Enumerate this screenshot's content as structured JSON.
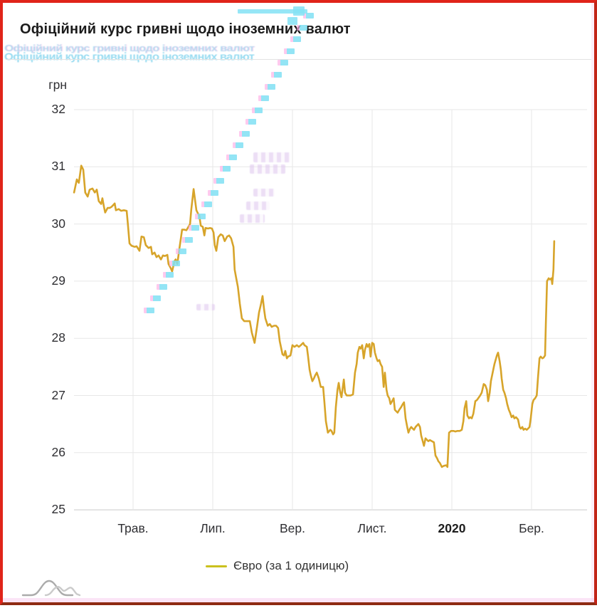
{
  "header": {
    "title": "Офіційний курс гривні щодо іноземних валют"
  },
  "legend": {
    "swatch_color": "#cbc11e"
  },
  "chart_data": {
    "type": "line",
    "title": "Офіційний курс гривні щодо іноземних валют",
    "ylabel": "грн",
    "ylim": [
      25,
      32
    ],
    "y_ticks": [
      32,
      31,
      30,
      29,
      28,
      27,
      26,
      25
    ],
    "grid": true,
    "legend_position": "bottom",
    "x_unit": "months, 0 = Трав. (May 2019), ticks every 2 months",
    "x_ticks": [
      {
        "m": 0,
        "label": "Трав.",
        "bold": false
      },
      {
        "m": 2,
        "label": "Лип.",
        "bold": false
      },
      {
        "m": 4,
        "label": "Вер.",
        "bold": false
      },
      {
        "m": 6,
        "label": "Лист.",
        "bold": false
      },
      {
        "m": 8,
        "label": "2020",
        "bold": true
      },
      {
        "m": 10,
        "label": "Бер.",
        "bold": false
      }
    ],
    "series": [
      {
        "name": "Євро (за 1 одиницю)",
        "color": "#d7a42a",
        "points": [
          [
            -1.48,
            30.55
          ],
          [
            -1.41,
            30.78
          ],
          [
            -1.36,
            30.72
          ],
          [
            -1.3,
            31.02
          ],
          [
            -1.25,
            30.95
          ],
          [
            -1.2,
            30.55
          ],
          [
            -1.14,
            30.48
          ],
          [
            -1.09,
            30.6
          ],
          [
            -1.02,
            30.62
          ],
          [
            -0.96,
            30.55
          ],
          [
            -0.91,
            30.6
          ],
          [
            -0.86,
            30.4
          ],
          [
            -0.8,
            30.35
          ],
          [
            -0.77,
            30.45
          ],
          [
            -0.73,
            30.3
          ],
          [
            -0.7,
            30.2
          ],
          [
            -0.64,
            30.28
          ],
          [
            -0.59,
            30.28
          ],
          [
            -0.54,
            30.3
          ],
          [
            -0.46,
            30.36
          ],
          [
            -0.43,
            30.24
          ],
          [
            -0.36,
            30.26
          ],
          [
            -0.3,
            30.23
          ],
          [
            -0.23,
            30.24
          ],
          [
            -0.16,
            30.23
          ],
          [
            -0.13,
            30.0
          ],
          [
            -0.09,
            29.66
          ],
          [
            -0.04,
            29.62
          ],
          [
            0.04,
            29.6
          ],
          [
            0.09,
            29.61
          ],
          [
            0.16,
            29.53
          ],
          [
            0.21,
            29.78
          ],
          [
            0.27,
            29.77
          ],
          [
            0.32,
            29.63
          ],
          [
            0.39,
            29.58
          ],
          [
            0.45,
            29.6
          ],
          [
            0.48,
            29.47
          ],
          [
            0.54,
            29.5
          ],
          [
            0.59,
            29.42
          ],
          [
            0.64,
            29.45
          ],
          [
            0.7,
            29.38
          ],
          [
            0.75,
            29.45
          ],
          [
            0.8,
            29.44
          ],
          [
            0.86,
            29.46
          ],
          [
            0.89,
            29.3
          ],
          [
            0.95,
            29.22
          ],
          [
            0.98,
            29.17
          ],
          [
            1.04,
            29.35
          ],
          [
            1.07,
            29.38
          ],
          [
            1.11,
            29.3
          ],
          [
            1.16,
            29.56
          ],
          [
            1.2,
            29.75
          ],
          [
            1.23,
            29.9
          ],
          [
            1.29,
            29.9
          ],
          [
            1.34,
            29.89
          ],
          [
            1.39,
            29.95
          ],
          [
            1.43,
            30.0
          ],
          [
            1.46,
            30.25
          ],
          [
            1.52,
            30.61
          ],
          [
            1.55,
            30.45
          ],
          [
            1.59,
            30.24
          ],
          [
            1.63,
            30.18
          ],
          [
            1.66,
            30.15
          ],
          [
            1.7,
            29.97
          ],
          [
            1.75,
            29.95
          ],
          [
            1.79,
            29.8
          ],
          [
            1.82,
            29.93
          ],
          [
            1.88,
            29.92
          ],
          [
            1.93,
            29.93
          ],
          [
            1.98,
            29.92
          ],
          [
            2.02,
            29.85
          ],
          [
            2.05,
            29.63
          ],
          [
            2.09,
            29.53
          ],
          [
            2.14,
            29.77
          ],
          [
            2.2,
            29.82
          ],
          [
            2.25,
            29.8
          ],
          [
            2.3,
            29.7
          ],
          [
            2.36,
            29.78
          ],
          [
            2.41,
            29.8
          ],
          [
            2.46,
            29.75
          ],
          [
            2.52,
            29.6
          ],
          [
            2.55,
            29.2
          ],
          [
            2.59,
            29.05
          ],
          [
            2.63,
            28.9
          ],
          [
            2.68,
            28.6
          ],
          [
            2.73,
            28.35
          ],
          [
            2.79,
            28.3
          ],
          [
            2.86,
            28.3
          ],
          [
            2.93,
            28.3
          ],
          [
            2.98,
            28.1
          ],
          [
            3.05,
            27.92
          ],
          [
            3.11,
            28.2
          ],
          [
            3.16,
            28.45
          ],
          [
            3.21,
            28.6
          ],
          [
            3.25,
            28.74
          ],
          [
            3.29,
            28.5
          ],
          [
            3.32,
            28.35
          ],
          [
            3.38,
            28.22
          ],
          [
            3.43,
            28.25
          ],
          [
            3.48,
            28.2
          ],
          [
            3.54,
            28.22
          ],
          [
            3.59,
            28.22
          ],
          [
            3.64,
            28.18
          ],
          [
            3.68,
            27.95
          ],
          [
            3.71,
            27.85
          ],
          [
            3.75,
            27.72
          ],
          [
            3.79,
            27.7
          ],
          [
            3.82,
            27.78
          ],
          [
            3.86,
            27.65
          ],
          [
            3.89,
            27.68
          ],
          [
            3.95,
            27.7
          ],
          [
            4.0,
            27.88
          ],
          [
            4.05,
            27.85
          ],
          [
            4.11,
            27.88
          ],
          [
            4.16,
            27.85
          ],
          [
            4.21,
            27.88
          ],
          [
            4.27,
            27.92
          ],
          [
            4.3,
            27.88
          ],
          [
            4.36,
            27.85
          ],
          [
            4.39,
            27.7
          ],
          [
            4.43,
            27.45
          ],
          [
            4.46,
            27.35
          ],
          [
            4.5,
            27.25
          ],
          [
            4.54,
            27.3
          ],
          [
            4.57,
            27.35
          ],
          [
            4.61,
            27.4
          ],
          [
            4.66,
            27.3
          ],
          [
            4.71,
            27.15
          ],
          [
            4.77,
            27.15
          ],
          [
            4.8,
            26.9
          ],
          [
            4.84,
            26.55
          ],
          [
            4.89,
            26.35
          ],
          [
            4.95,
            26.4
          ],
          [
            4.98,
            26.38
          ],
          [
            5.02,
            26.32
          ],
          [
            5.05,
            26.35
          ],
          [
            5.09,
            26.8
          ],
          [
            5.13,
            27.1
          ],
          [
            5.16,
            27.22
          ],
          [
            5.2,
            27.05
          ],
          [
            5.23,
            26.97
          ],
          [
            5.29,
            27.28
          ],
          [
            5.32,
            27.05
          ],
          [
            5.36,
            27.0
          ],
          [
            5.41,
            27.0
          ],
          [
            5.46,
            27.0
          ],
          [
            5.52,
            27.02
          ],
          [
            5.57,
            27.4
          ],
          [
            5.61,
            27.55
          ],
          [
            5.64,
            27.75
          ],
          [
            5.68,
            27.85
          ],
          [
            5.71,
            27.82
          ],
          [
            5.75,
            27.88
          ],
          [
            5.79,
            27.65
          ],
          [
            5.82,
            27.8
          ],
          [
            5.86,
            27.9
          ],
          [
            5.89,
            27.85
          ],
          [
            5.93,
            27.9
          ],
          [
            5.96,
            27.68
          ],
          [
            6.0,
            27.92
          ],
          [
            6.04,
            27.9
          ],
          [
            6.07,
            27.75
          ],
          [
            6.11,
            27.65
          ],
          [
            6.14,
            27.6
          ],
          [
            6.18,
            27.62
          ],
          [
            6.21,
            27.55
          ],
          [
            6.25,
            27.5
          ],
          [
            6.29,
            27.15
          ],
          [
            6.32,
            27.4
          ],
          [
            6.36,
            27.1
          ],
          [
            6.39,
            27.0
          ],
          [
            6.43,
            26.95
          ],
          [
            6.46,
            26.85
          ],
          [
            6.5,
            26.9
          ],
          [
            6.54,
            26.95
          ],
          [
            6.57,
            26.75
          ],
          [
            6.61,
            26.72
          ],
          [
            6.64,
            26.7
          ],
          [
            6.68,
            26.75
          ],
          [
            6.73,
            26.8
          ],
          [
            6.77,
            26.85
          ],
          [
            6.8,
            26.88
          ],
          [
            6.84,
            26.6
          ],
          [
            6.88,
            26.45
          ],
          [
            6.91,
            26.35
          ],
          [
            6.95,
            26.42
          ],
          [
            6.98,
            26.45
          ],
          [
            7.02,
            26.42
          ],
          [
            7.05,
            26.4
          ],
          [
            7.09,
            26.45
          ],
          [
            7.13,
            26.48
          ],
          [
            7.16,
            26.5
          ],
          [
            7.2,
            26.45
          ],
          [
            7.23,
            26.3
          ],
          [
            7.27,
            26.2
          ],
          [
            7.3,
            26.12
          ],
          [
            7.34,
            26.25
          ],
          [
            7.38,
            26.22
          ],
          [
            7.41,
            26.2
          ],
          [
            7.45,
            26.22
          ],
          [
            7.5,
            26.2
          ],
          [
            7.55,
            26.18
          ],
          [
            7.59,
            25.95
          ],
          [
            7.63,
            25.9
          ],
          [
            7.66,
            25.85
          ],
          [
            7.7,
            25.82
          ],
          [
            7.75,
            25.75
          ],
          [
            7.8,
            25.77
          ],
          [
            7.86,
            25.78
          ],
          [
            7.89,
            25.75
          ],
          [
            7.93,
            26.35
          ],
          [
            7.98,
            26.38
          ],
          [
            8.04,
            26.38
          ],
          [
            8.09,
            26.37
          ],
          [
            8.14,
            26.38
          ],
          [
            8.2,
            26.38
          ],
          [
            8.25,
            26.4
          ],
          [
            8.29,
            26.55
          ],
          [
            8.32,
            26.78
          ],
          [
            8.36,
            26.9
          ],
          [
            8.39,
            26.65
          ],
          [
            8.43,
            26.6
          ],
          [
            8.46,
            26.62
          ],
          [
            8.5,
            26.6
          ],
          [
            8.54,
            26.68
          ],
          [
            8.59,
            26.9
          ],
          [
            8.63,
            26.92
          ],
          [
            8.66,
            26.95
          ],
          [
            8.71,
            27.0
          ],
          [
            8.75,
            27.05
          ],
          [
            8.8,
            27.2
          ],
          [
            8.84,
            27.18
          ],
          [
            8.88,
            27.1
          ],
          [
            8.91,
            26.9
          ],
          [
            8.95,
            27.05
          ],
          [
            8.98,
            27.25
          ],
          [
            9.04,
            27.45
          ],
          [
            9.07,
            27.55
          ],
          [
            9.13,
            27.7
          ],
          [
            9.16,
            27.75
          ],
          [
            9.2,
            27.6
          ],
          [
            9.23,
            27.45
          ],
          [
            9.25,
            27.3
          ],
          [
            9.29,
            27.1
          ],
          [
            9.32,
            27.05
          ],
          [
            9.36,
            26.95
          ],
          [
            9.39,
            26.85
          ],
          [
            9.43,
            26.75
          ],
          [
            9.46,
            26.7
          ],
          [
            9.5,
            26.62
          ],
          [
            9.54,
            26.65
          ],
          [
            9.57,
            26.6
          ],
          [
            9.61,
            26.62
          ],
          [
            9.66,
            26.58
          ],
          [
            9.7,
            26.45
          ],
          [
            9.73,
            26.42
          ],
          [
            9.77,
            26.45
          ],
          [
            9.8,
            26.4
          ],
          [
            9.84,
            26.42
          ],
          [
            9.88,
            26.4
          ],
          [
            9.91,
            26.42
          ],
          [
            9.95,
            26.45
          ],
          [
            9.98,
            26.6
          ],
          [
            10.02,
            26.85
          ],
          [
            10.05,
            26.92
          ],
          [
            10.09,
            26.95
          ],
          [
            10.13,
            27.0
          ],
          [
            10.16,
            27.3
          ],
          [
            10.2,
            27.65
          ],
          [
            10.23,
            27.68
          ],
          [
            10.27,
            27.65
          ],
          [
            10.3,
            27.66
          ],
          [
            10.34,
            27.7
          ],
          [
            10.36,
            28.3
          ],
          [
            10.39,
            29.0
          ],
          [
            10.43,
            29.05
          ],
          [
            10.46,
            29.03
          ],
          [
            10.5,
            29.05
          ],
          [
            10.52,
            28.95
          ],
          [
            10.55,
            29.2
          ],
          [
            10.57,
            29.7
          ]
        ]
      }
    ]
  }
}
